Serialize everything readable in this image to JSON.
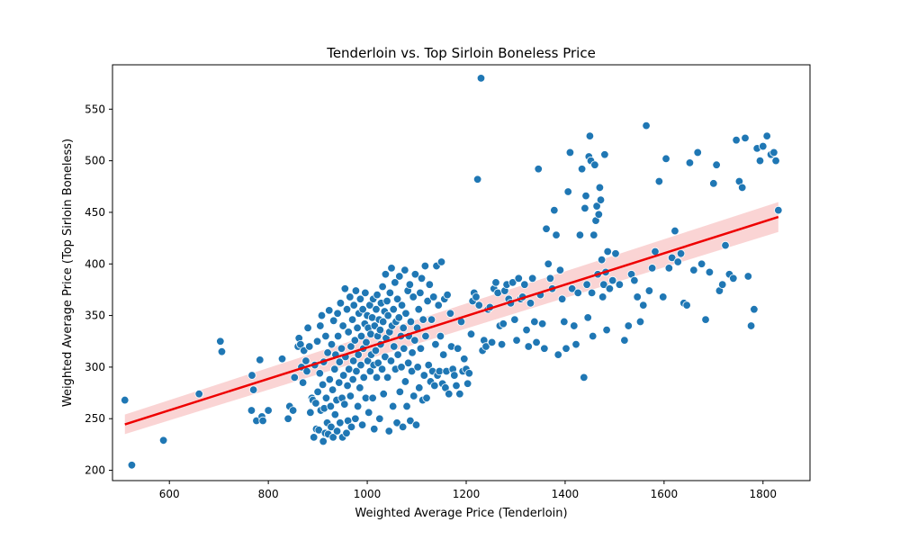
{
  "chart_data": {
    "type": "scatter",
    "title": "Tenderloin vs. Top Sirloin Boneless Price",
    "xlabel": "Weighted Average Price (Tenderloin)",
    "ylabel": "Weighted Average Price (Top Sirloin Boneless)",
    "xlim": [
      485,
      1895
    ],
    "ylim": [
      190,
      593
    ],
    "xticks": [
      600,
      800,
      1000,
      1200,
      1400,
      1600,
      1800
    ],
    "yticks": [
      200,
      250,
      300,
      350,
      400,
      450,
      500,
      550
    ],
    "grid": false,
    "point_color": "#1f77b4",
    "regression": {
      "color": "#ee0000",
      "band_color": "#f4a0a0",
      "x": [
        510,
        1831
      ],
      "y": [
        244.5,
        445.5
      ],
      "ci_low": [
        235,
        431
      ],
      "ci_high": [
        254,
        460
      ]
    },
    "points": [
      [
        510,
        268
      ],
      [
        524,
        205
      ],
      [
        588,
        229
      ],
      [
        660,
        274
      ],
      [
        703,
        325
      ],
      [
        706,
        315
      ],
      [
        766,
        258
      ],
      [
        767,
        292
      ],
      [
        770,
        278
      ],
      [
        776,
        248
      ],
      [
        783,
        307
      ],
      [
        787,
        252
      ],
      [
        789,
        248
      ],
      [
        800,
        258
      ],
      [
        828,
        308
      ],
      [
        840,
        250
      ],
      [
        843,
        262
      ],
      [
        850,
        258
      ],
      [
        853,
        290
      ],
      [
        860,
        320
      ],
      [
        862,
        328
      ],
      [
        865,
        322
      ],
      [
        867,
        300
      ],
      [
        870,
        285
      ],
      [
        872,
        316
      ],
      [
        876,
        306
      ],
      [
        878,
        296
      ],
      [
        880,
        338
      ],
      [
        883,
        320
      ],
      [
        885,
        256
      ],
      [
        888,
        270
      ],
      [
        890,
        268
      ],
      [
        892,
        232
      ],
      [
        894,
        302
      ],
      [
        896,
        265
      ],
      [
        897,
        240
      ],
      [
        899,
        325
      ],
      [
        900,
        276
      ],
      [
        902,
        239
      ],
      [
        904,
        294
      ],
      [
        905,
        340
      ],
      [
        906,
        258
      ],
      [
        908,
        350
      ],
      [
        910,
        283
      ],
      [
        911,
        228
      ],
      [
        912,
        305
      ],
      [
        913,
        260
      ],
      [
        915,
        236
      ],
      [
        916,
        330
      ],
      [
        917,
        270
      ],
      [
        919,
        246
      ],
      [
        920,
        314
      ],
      [
        921,
        235
      ],
      [
        923,
        355
      ],
      [
        924,
        288
      ],
      [
        926,
        262
      ],
      [
        927,
        242
      ],
      [
        928,
        322
      ],
      [
        930,
        278
      ],
      [
        931,
        232
      ],
      [
        932,
        345
      ],
      [
        934,
        298
      ],
      [
        935,
        254
      ],
      [
        936,
        312
      ],
      [
        938,
        268
      ],
      [
        939,
        238
      ],
      [
        940,
        352
      ],
      [
        941,
        330
      ],
      [
        943,
        285
      ],
      [
        944,
        305
      ],
      [
        945,
        246
      ],
      [
        946,
        362
      ],
      [
        948,
        318
      ],
      [
        949,
        270
      ],
      [
        950,
        232
      ],
      [
        951,
        340
      ],
      [
        952,
        292
      ],
      [
        954,
        264
      ],
      [
        955,
        376
      ],
      [
        956,
        310
      ],
      [
        958,
        236
      ],
      [
        959,
        356
      ],
      [
        960,
        282
      ],
      [
        961,
        248
      ],
      [
        962,
        334
      ],
      [
        963,
        298
      ],
      [
        965,
        368
      ],
      [
        966,
        272
      ],
      [
        967,
        320
      ],
      [
        968,
        242
      ],
      [
        970,
        346
      ],
      [
        971,
        288
      ],
      [
        972,
        306
      ],
      [
        973,
        360
      ],
      [
        975,
        326
      ],
      [
        976,
        250
      ],
      [
        977,
        374
      ],
      [
        978,
        296
      ],
      [
        980,
        338
      ],
      [
        981,
        262
      ],
      [
        982,
        312
      ],
      [
        983,
        352
      ],
      [
        985,
        280
      ],
      [
        986,
        366
      ],
      [
        987,
        302
      ],
      [
        988,
        330
      ],
      [
        990,
        244
      ],
      [
        991,
        356
      ],
      [
        992,
        318
      ],
      [
        993,
        290
      ],
      [
        995,
        342
      ],
      [
        996,
        372
      ],
      [
        997,
        270
      ],
      [
        998,
        324
      ],
      [
        1000,
        350
      ],
      [
        1001,
        306
      ],
      [
        1002,
        338
      ],
      [
        1003,
        256
      ],
      [
        1005,
        360
      ],
      [
        1006,
        296
      ],
      [
        1007,
        332
      ],
      [
        1008,
        312
      ],
      [
        1010,
        348
      ],
      [
        1011,
        270
      ],
      [
        1012,
        366
      ],
      [
        1013,
        302
      ],
      [
        1014,
        240
      ],
      [
        1015,
        340
      ],
      [
        1017,
        316
      ],
      [
        1018,
        356
      ],
      [
        1019,
        290
      ],
      [
        1020,
        370
      ],
      [
        1021,
        330
      ],
      [
        1022,
        304
      ],
      [
        1024,
        346
      ],
      [
        1025,
        250
      ],
      [
        1026,
        336
      ],
      [
        1027,
        322
      ],
      [
        1028,
        362
      ],
      [
        1030,
        298
      ],
      [
        1031,
        378
      ],
      [
        1032,
        344
      ],
      [
        1033,
        274
      ],
      [
        1035,
        354
      ],
      [
        1036,
        310
      ],
      [
        1037,
        390
      ],
      [
        1038,
        328
      ],
      [
        1040,
        364
      ],
      [
        1041,
        290
      ],
      [
        1042,
        350
      ],
      [
        1044,
        238
      ],
      [
        1045,
        334
      ],
      [
        1046,
        372
      ],
      [
        1048,
        306
      ],
      [
        1049,
        396
      ],
      [
        1050,
        340
      ],
      [
        1052,
        262
      ],
      [
        1053,
        356
      ],
      [
        1054,
        320
      ],
      [
        1056,
        382
      ],
      [
        1057,
        298
      ],
      [
        1058,
        344
      ],
      [
        1060,
        246
      ],
      [
        1061,
        366
      ],
      [
        1062,
        312
      ],
      [
        1064,
        348
      ],
      [
        1065,
        388
      ],
      [
        1066,
        276
      ],
      [
        1068,
        330
      ],
      [
        1069,
        300
      ],
      [
        1070,
        360
      ],
      [
        1072,
        242
      ],
      [
        1073,
        338
      ],
      [
        1074,
        318
      ],
      [
        1076,
        394
      ],
      [
        1077,
        286
      ],
      [
        1078,
        352
      ],
      [
        1080,
        262
      ],
      [
        1082,
        374
      ],
      [
        1083,
        304
      ],
      [
        1084,
        330
      ],
      [
        1086,
        380
      ],
      [
        1087,
        248
      ],
      [
        1088,
        344
      ],
      [
        1090,
        296
      ],
      [
        1091,
        314
      ],
      [
        1093,
        368
      ],
      [
        1094,
        272
      ],
      [
        1096,
        326
      ],
      [
        1097,
        390
      ],
      [
        1099,
        244
      ],
      [
        1101,
        338
      ],
      [
        1102,
        300
      ],
      [
        1104,
        356
      ],
      [
        1105,
        280
      ],
      [
        1107,
        372
      ],
      [
        1108,
        318
      ],
      [
        1110,
        386
      ],
      [
        1112,
        268
      ],
      [
        1113,
        346
      ],
      [
        1115,
        292
      ],
      [
        1117,
        398
      ],
      [
        1118,
        330
      ],
      [
        1120,
        270
      ],
      [
        1122,
        364
      ],
      [
        1124,
        302
      ],
      [
        1126,
        380
      ],
      [
        1128,
        286
      ],
      [
        1130,
        346
      ],
      [
        1132,
        296
      ],
      [
        1134,
        368
      ],
      [
        1136,
        282
      ],
      [
        1138,
        322
      ],
      [
        1140,
        398
      ],
      [
        1142,
        292
      ],
      [
        1144,
        360
      ],
      [
        1146,
        296
      ],
      [
        1148,
        330
      ],
      [
        1150,
        402
      ],
      [
        1152,
        284
      ],
      [
        1154,
        312
      ],
      [
        1156,
        366
      ],
      [
        1158,
        280
      ],
      [
        1160,
        296
      ],
      [
        1162,
        370
      ],
      [
        1165,
        274
      ],
      [
        1168,
        352
      ],
      [
        1170,
        320
      ],
      [
        1173,
        298
      ],
      [
        1176,
        292
      ],
      [
        1180,
        282
      ],
      [
        1183,
        318
      ],
      [
        1187,
        274
      ],
      [
        1190,
        344
      ],
      [
        1193,
        296
      ],
      [
        1196,
        308
      ],
      [
        1200,
        298
      ],
      [
        1203,
        284
      ],
      [
        1206,
        294
      ],
      [
        1210,
        332
      ],
      [
        1213,
        364
      ],
      [
        1216,
        372
      ],
      [
        1220,
        368
      ],
      [
        1223,
        482
      ],
      [
        1226,
        360
      ],
      [
        1230,
        580
      ],
      [
        1233,
        316
      ],
      [
        1236,
        326
      ],
      [
        1240,
        320
      ],
      [
        1244,
        356
      ],
      [
        1248,
        358
      ],
      [
        1252,
        324
      ],
      [
        1256,
        376
      ],
      [
        1260,
        382
      ],
      [
        1264,
        372
      ],
      [
        1268,
        340
      ],
      [
        1272,
        322
      ],
      [
        1275,
        342
      ],
      [
        1278,
        374
      ],
      [
        1282,
        380
      ],
      [
        1286,
        366
      ],
      [
        1290,
        362
      ],
      [
        1294,
        382
      ],
      [
        1298,
        346
      ],
      [
        1302,
        326
      ],
      [
        1306,
        386
      ],
      [
        1310,
        366
      ],
      [
        1314,
        368
      ],
      [
        1318,
        380
      ],
      [
        1322,
        336
      ],
      [
        1326,
        320
      ],
      [
        1330,
        362
      ],
      [
        1334,
        386
      ],
      [
        1338,
        344
      ],
      [
        1342,
        324
      ],
      [
        1346,
        492
      ],
      [
        1350,
        370
      ],
      [
        1354,
        342
      ],
      [
        1358,
        318
      ],
      [
        1362,
        434
      ],
      [
        1366,
        400
      ],
      [
        1370,
        386
      ],
      [
        1374,
        376
      ],
      [
        1378,
        452
      ],
      [
        1382,
        428
      ],
      [
        1386,
        312
      ],
      [
        1390,
        394
      ],
      [
        1394,
        366
      ],
      [
        1398,
        344
      ],
      [
        1402,
        318
      ],
      [
        1406,
        470
      ],
      [
        1410,
        508
      ],
      [
        1414,
        376
      ],
      [
        1418,
        340
      ],
      [
        1422,
        322
      ],
      [
        1426,
        372
      ],
      [
        1430,
        428
      ],
      [
        1434,
        492
      ],
      [
        1438,
        290
      ],
      [
        1440,
        454
      ],
      [
        1442,
        466
      ],
      [
        1444,
        380
      ],
      [
        1446,
        348
      ],
      [
        1448,
        504
      ],
      [
        1450,
        524
      ],
      [
        1452,
        500
      ],
      [
        1454,
        372
      ],
      [
        1456,
        330
      ],
      [
        1458,
        428
      ],
      [
        1460,
        496
      ],
      [
        1462,
        442
      ],
      [
        1464,
        456
      ],
      [
        1466,
        390
      ],
      [
        1468,
        448
      ],
      [
        1470,
        474
      ],
      [
        1472,
        462
      ],
      [
        1474,
        404
      ],
      [
        1476,
        368
      ],
      [
        1478,
        380
      ],
      [
        1480,
        506
      ],
      [
        1482,
        392
      ],
      [
        1484,
        336
      ],
      [
        1486,
        412
      ],
      [
        1490,
        376
      ],
      [
        1496,
        384
      ],
      [
        1502,
        410
      ],
      [
        1510,
        380
      ],
      [
        1520,
        326
      ],
      [
        1528,
        340
      ],
      [
        1534,
        390
      ],
      [
        1540,
        384
      ],
      [
        1546,
        368
      ],
      [
        1552,
        344
      ],
      [
        1558,
        360
      ],
      [
        1564,
        534
      ],
      [
        1570,
        374
      ],
      [
        1576,
        396
      ],
      [
        1582,
        412
      ],
      [
        1590,
        480
      ],
      [
        1598,
        368
      ],
      [
        1604,
        502
      ],
      [
        1610,
        396
      ],
      [
        1616,
        406
      ],
      [
        1622,
        432
      ],
      [
        1628,
        402
      ],
      [
        1634,
        410
      ],
      [
        1640,
        362
      ],
      [
        1646,
        360
      ],
      [
        1652,
        498
      ],
      [
        1660,
        394
      ],
      [
        1668,
        508
      ],
      [
        1676,
        400
      ],
      [
        1684,
        346
      ],
      [
        1692,
        392
      ],
      [
        1700,
        478
      ],
      [
        1706,
        496
      ],
      [
        1712,
        374
      ],
      [
        1718,
        380
      ],
      [
        1724,
        418
      ],
      [
        1732,
        390
      ],
      [
        1740,
        386
      ],
      [
        1746,
        520
      ],
      [
        1752,
        480
      ],
      [
        1758,
        474
      ],
      [
        1764,
        522
      ],
      [
        1770,
        388
      ],
      [
        1776,
        340
      ],
      [
        1782,
        356
      ],
      [
        1788,
        512
      ],
      [
        1794,
        500
      ],
      [
        1800,
        514
      ],
      [
        1808,
        524
      ],
      [
        1816,
        506
      ],
      [
        1822,
        508
      ],
      [
        1826,
        500
      ],
      [
        1831,
        452
      ]
    ]
  }
}
